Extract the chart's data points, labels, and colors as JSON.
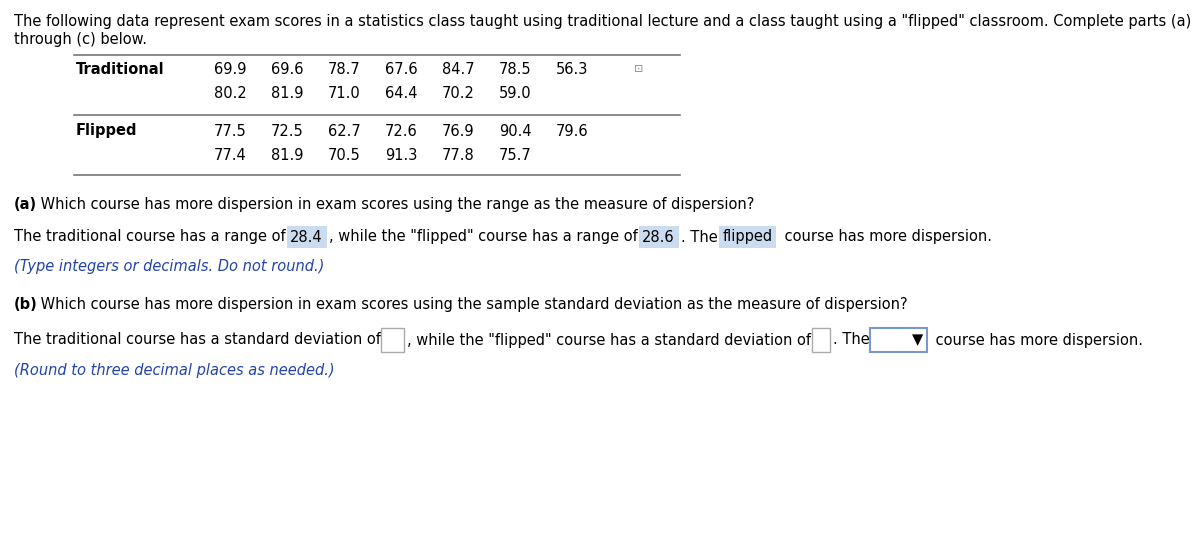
{
  "header_line1": "The following data represent exam scores in a statistics class taught using traditional lecture and a class taught using a \"flipped\" classroom. Complete parts (a)",
  "header_line2": "through (c) below.",
  "trad_row1": [
    "69.9",
    "69.6",
    "78.7",
    "67.6",
    "84.7",
    "78.5",
    "56.3"
  ],
  "trad_row2": [
    "80.2",
    "81.9",
    "71.0",
    "64.4",
    "70.2",
    "59.0"
  ],
  "flip_row1": [
    "77.5",
    "72.5",
    "62.7",
    "72.6",
    "76.9",
    "90.4",
    "79.6"
  ],
  "flip_row2": [
    "77.4",
    "81.9",
    "70.5",
    "91.3",
    "77.8",
    "75.7"
  ],
  "part_a_question": "(a) Which course has more dispersion in exam scores using the range as the measure of dispersion?",
  "part_b_question": "(b) Which course has more dispersion in exam scores using the sample standard deviation as the measure of dispersion?",
  "trad_range": "28.4",
  "flip_range": "28.6",
  "answer_a": "flipped",
  "note_a": "(Type integers or decimals. Do not round.)",
  "note_b": "(Round to three decimal places as needed.)",
  "bg_color": "#ffffff",
  "text_color": "#000000",
  "highlight_color": "#ccdcf0",
  "note_color": "#2244aa",
  "line_color": "#777777",
  "border_color": "#aaaacc",
  "fs": 10.5
}
